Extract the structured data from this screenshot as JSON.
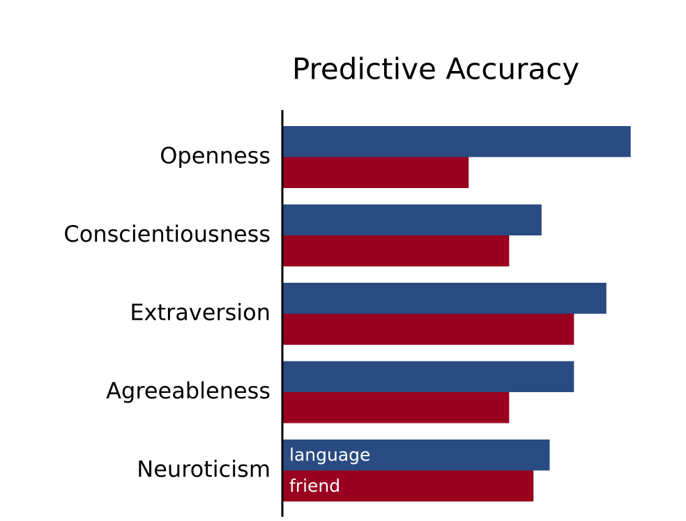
{
  "chart_data": {
    "type": "bar",
    "orientation": "horizontal",
    "title": "Predictive Accuracy",
    "categories": [
      "Openness",
      "Conscientiousness",
      "Extraversion",
      "Agreeableness",
      "Neuroticism"
    ],
    "series": [
      {
        "name": "language",
        "color": "#2a4b82",
        "values": [
          0.43,
          0.32,
          0.4,
          0.36,
          0.33
        ]
      },
      {
        "name": "friend",
        "color": "#9a0020",
        "values": [
          0.23,
          0.28,
          0.36,
          0.28,
          0.31
        ]
      }
    ],
    "xlim": [
      0,
      0.5
    ]
  }
}
